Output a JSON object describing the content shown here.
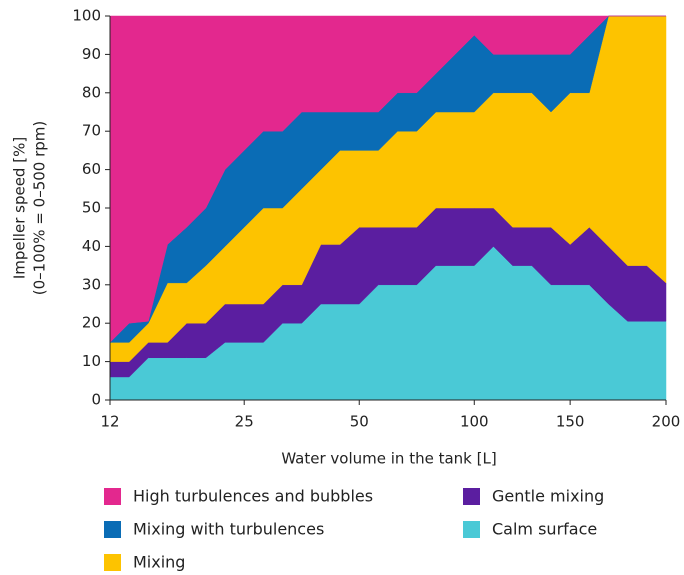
{
  "chart_data": {
    "type": "stacked_area",
    "xlabel": "Water volume in the tank [L]",
    "ylabel": [
      "Impeller speed [%]",
      "(0–100% = 0–500 rpm)"
    ],
    "categories": [
      "12",
      null,
      null,
      null,
      null,
      null,
      null,
      "25",
      null,
      null,
      null,
      null,
      null,
      "50",
      null,
      null,
      null,
      null,
      null,
      "100",
      null,
      null,
      null,
      null,
      "150",
      null,
      null,
      null,
      null,
      "200"
    ],
    "ylim": [
      0,
      100
    ],
    "yticks": [
      0,
      10,
      20,
      30,
      40,
      50,
      60,
      70,
      80,
      90,
      100
    ],
    "series": [
      {
        "name": "Calm surface",
        "color": "#4ac9d6",
        "values": [
          6,
          6,
          11,
          11,
          11,
          11,
          15,
          15,
          15,
          20,
          20,
          25,
          25,
          25,
          30,
          30,
          30,
          35,
          35,
          35,
          40,
          35,
          35,
          30,
          30,
          30,
          25,
          20.5,
          20.5,
          20.5
        ]
      },
      {
        "name": "Gentle mixing",
        "color": "#5b1ea0",
        "values": [
          4,
          4,
          4,
          4,
          9,
          9,
          10,
          10,
          10,
          10,
          10,
          15.5,
          15.5,
          20,
          15,
          15,
          15,
          15,
          15,
          15,
          10,
          10,
          10,
          15,
          10.5,
          15,
          15,
          14.5,
          14.5,
          10
        ]
      },
      {
        "name": "Mixing",
        "color": "#fdc300",
        "values": [
          5,
          5,
          5,
          15.5,
          10.5,
          15,
          15,
          20,
          25,
          20,
          25,
          19.5,
          24.5,
          20,
          20,
          25,
          25,
          25,
          25,
          25,
          30,
          35,
          35,
          30,
          39.5,
          35,
          60,
          65,
          65,
          69.5
        ]
      },
      {
        "name": "Mixing with turbulences",
        "color": "#0a6cb5",
        "values": [
          0,
          5,
          0.5,
          10,
          14.5,
          15,
          20,
          20,
          20,
          20,
          20,
          15,
          10,
          10,
          10,
          10,
          10,
          10,
          15,
          20,
          10,
          10,
          10,
          15,
          10,
          15,
          0,
          0,
          0,
          0
        ]
      },
      {
        "name": "High turbulences and bubbles",
        "color": "#e3288e",
        "values": [
          85,
          80,
          79.5,
          59.5,
          55,
          50,
          40,
          35,
          30,
          30,
          25,
          25,
          25,
          25,
          25,
          20,
          20,
          15,
          10,
          5,
          10,
          10,
          10,
          10,
          10,
          5,
          0,
          0,
          0,
          0
        ]
      }
    ]
  }
}
